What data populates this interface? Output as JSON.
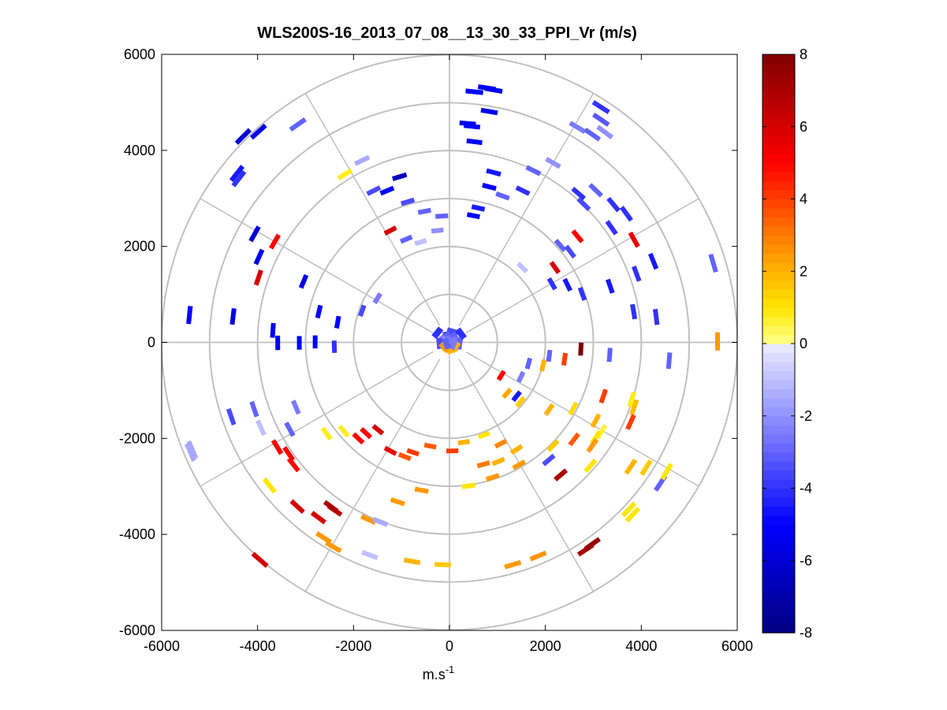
{
  "chart_data": {
    "type": "scatter",
    "subtype": "polar-ppi",
    "title": "WLS200S-16_2013_07_08__13_30_33_PPI_Vr (m/s)",
    "xlabel": "m.s",
    "xlabel_superscript": "-1",
    "ylabel": "",
    "xlim": [
      -6000,
      6000
    ],
    "ylim": [
      -6000,
      6000
    ],
    "xticks": [
      -6000,
      -4000,
      -2000,
      0,
      2000,
      4000,
      6000
    ],
    "yticks": [
      -6000,
      -4000,
      -2000,
      0,
      2000,
      4000,
      6000
    ],
    "xtick_labels": [
      "-6000",
      "-4000",
      "-2000",
      "0",
      "2000",
      "4000",
      "6000"
    ],
    "ytick_labels": [
      "-6000",
      "-4000",
      "-2000",
      "0",
      "2000",
      "4000",
      "6000"
    ],
    "polar_grid": {
      "ring_radii": [
        1000,
        2000,
        3000,
        4000,
        5000,
        6000
      ],
      "spoke_angles_deg": [
        0,
        30,
        60,
        90,
        120,
        150,
        180,
        210,
        240,
        270,
        300,
        330
      ]
    },
    "colorbar": {
      "min": -8,
      "max": 8,
      "ticks": [
        8,
        6,
        4,
        2,
        0,
        -2,
        -4,
        -6,
        -8
      ],
      "tick_labels": [
        "8",
        "6",
        "4",
        "2",
        "0",
        "-2",
        "-4",
        "-6",
        "-8"
      ],
      "colormap": "blue-white-yellow-red",
      "stops": [
        {
          "v": -8,
          "c": "#00007f"
        },
        {
          "v": -5,
          "c": "#0000ff"
        },
        {
          "v": -2.5,
          "c": "#7a7aff"
        },
        {
          "v": -0.1,
          "c": "#e8e8ff"
        },
        {
          "v": 0.1,
          "c": "#ffff80"
        },
        {
          "v": 1,
          "c": "#ffe600"
        },
        {
          "v": 2.5,
          "c": "#ff9900"
        },
        {
          "v": 5,
          "c": "#ff0000"
        },
        {
          "v": 8,
          "c": "#7f0000"
        }
      ]
    },
    "points": [
      [
        920,
        5260,
        -5.5
      ],
      [
        780,
        5300,
        -5
      ],
      [
        520,
        5220,
        -5
      ],
      [
        380,
        4560,
        -5.5
      ],
      [
        470,
        4500,
        -5
      ],
      [
        520,
        4180,
        -5
      ],
      [
        830,
        4810,
        -5.5
      ],
      [
        920,
        3540,
        -4.5
      ],
      [
        830,
        3240,
        -5
      ],
      [
        1110,
        3050,
        -3
      ],
      [
        600,
        2800,
        -4.5
      ],
      [
        500,
        2640,
        -5
      ],
      [
        1530,
        3160,
        -4
      ],
      [
        1750,
        3580,
        -3
      ],
      [
        2160,
        3740,
        -2
      ],
      [
        2670,
        4480,
        -2.5
      ],
      [
        2980,
        4330,
        -3
      ],
      [
        3160,
        4900,
        -4
      ],
      [
        3160,
        4640,
        -3.2
      ],
      [
        3240,
        4380,
        -2
      ],
      [
        2690,
        3100,
        -4
      ],
      [
        3050,
        3170,
        -3
      ],
      [
        2800,
        2880,
        -3.5
      ],
      [
        3420,
        2870,
        -4
      ],
      [
        3690,
        2680,
        -4
      ],
      [
        3850,
        2140,
        5.5
      ],
      [
        3380,
        2390,
        -4
      ],
      [
        2670,
        2210,
        5
      ],
      [
        2310,
        2020,
        -3
      ],
      [
        2520,
        1890,
        -3.5
      ],
      [
        1520,
        1560,
        -1
      ],
      [
        2200,
        1560,
        6
      ],
      [
        2140,
        1220,
        -4
      ],
      [
        2460,
        1200,
        -4.5
      ],
      [
        2770,
        1010,
        -4
      ],
      [
        3350,
        1170,
        -4.5
      ],
      [
        3900,
        1430,
        -4
      ],
      [
        4250,
        1690,
        -4.5
      ],
      [
        3840,
        640,
        -4
      ],
      [
        4310,
        530,
        -4
      ],
      [
        5500,
        1650,
        -3
      ],
      [
        5590,
        20,
        2.5
      ],
      [
        4580,
        -380,
        -3
      ],
      [
        3340,
        -260,
        -3
      ],
      [
        2740,
        -140,
        8
      ],
      [
        2400,
        -350,
        4
      ],
      [
        2080,
        -280,
        -3
      ],
      [
        1950,
        -480,
        2
      ],
      [
        1490,
        -720,
        -2.5
      ],
      [
        1650,
        -440,
        -3
      ],
      [
        1080,
        -690,
        5
      ],
      [
        1200,
        -1060,
        2.2
      ],
      [
        1400,
        -1120,
        -4.5
      ],
      [
        1480,
        -1240,
        1.5
      ],
      [
        2080,
        -1400,
        2
      ],
      [
        2580,
        -1380,
        1.2
      ],
      [
        3210,
        -1120,
        4
      ],
      [
        3800,
        -1190,
        0.8
      ],
      [
        3850,
        -1350,
        1.8
      ],
      [
        3780,
        -1660,
        4
      ],
      [
        3050,
        -1630,
        2
      ],
      [
        3170,
        -1860,
        0.6
      ],
      [
        3050,
        -1980,
        1
      ],
      [
        2980,
        -2150,
        2.5
      ],
      [
        2600,
        -2020,
        3.5
      ],
      [
        2160,
        -2150,
        1.5
      ],
      [
        2070,
        -2450,
        -3.5
      ],
      [
        1400,
        -2230,
        2
      ],
      [
        1070,
        -2110,
        2.8
      ],
      [
        720,
        -1930,
        1
      ],
      [
        300,
        -2080,
        2
      ],
      [
        60,
        -2260,
        4
      ],
      [
        -400,
        -2160,
        3.5
      ],
      [
        -760,
        -2290,
        4
      ],
      [
        -930,
        -2380,
        3.6
      ],
      [
        -1230,
        -2260,
        5.5
      ],
      [
        -1490,
        -1820,
        6
      ],
      [
        -1740,
        -1890,
        5
      ],
      [
        -1900,
        -2000,
        5
      ],
      [
        -2200,
        -1850,
        0.8
      ],
      [
        -2560,
        -1900,
        0.8
      ],
      [
        -3200,
        -1350,
        -2.5
      ],
      [
        -3330,
        -1810,
        -3
      ],
      [
        -3930,
        -1780,
        -1
      ],
      [
        -4070,
        -1390,
        -3
      ],
      [
        -4550,
        -1550,
        -3.5
      ],
      [
        -3590,
        -2180,
        5
      ],
      [
        -3350,
        -2320,
        5
      ],
      [
        -3250,
        -2550,
        5
      ],
      [
        -3750,
        -2980,
        1
      ],
      [
        -3170,
        -3420,
        6
      ],
      [
        -2390,
        -3500,
        6.5
      ],
      [
        -2470,
        -3420,
        7
      ],
      [
        -2730,
        -3650,
        6
      ],
      [
        -2420,
        -4260,
        2.5
      ],
      [
        -1690,
        -3690,
        2.5
      ],
      [
        -1440,
        -3740,
        -1.5
      ],
      [
        -1080,
        -3320,
        2.5
      ],
      [
        -580,
        -3080,
        2.5
      ],
      [
        400,
        -2990,
        1
      ],
      [
        900,
        -2810,
        2.5
      ],
      [
        1450,
        -2550,
        2.5
      ],
      [
        1020,
        -2480,
        2
      ],
      [
        710,
        -2540,
        3
      ],
      [
        2320,
        -2760,
        7
      ],
      [
        2940,
        -2570,
        1
      ],
      [
        3780,
        -2590,
        2
      ],
      [
        4100,
        -2610,
        1.5
      ],
      [
        4400,
        -2930,
        -3
      ],
      [
        4530,
        -2690,
        1
      ],
      [
        3740,
        -3480,
        1
      ],
      [
        3820,
        -3590,
        1
      ],
      [
        2840,
        -4320,
        7
      ],
      [
        2980,
        -4200,
        7.5
      ],
      [
        1850,
        -4450,
        2.6
      ],
      [
        1320,
        -4630,
        2.5
      ],
      [
        -140,
        -4630,
        1.6
      ],
      [
        -780,
        -4560,
        2
      ],
      [
        -1660,
        -4430,
        -1
      ],
      [
        -2620,
        -4070,
        2.5
      ],
      [
        -3950,
        -4530,
        6
      ],
      [
        -5360,
        -2240,
        -1.5
      ],
      [
        -5400,
        -2290,
        -1.5
      ],
      [
        -5420,
        570,
        -5
      ],
      [
        -4510,
        540,
        -5.5
      ],
      [
        -3680,
        250,
        -5
      ],
      [
        -3130,
        -10,
        -5
      ],
      [
        -3580,
        -10,
        -5.5
      ],
      [
        -2800,
        10,
        -5
      ],
      [
        -4060,
        2260,
        -6
      ],
      [
        -3640,
        2100,
        5
      ],
      [
        -3970,
        1780,
        -5.5
      ],
      [
        -3980,
        1350,
        6
      ],
      [
        -3040,
        1270,
        -5.5
      ],
      [
        -2720,
        640,
        -5
      ],
      [
        -2330,
        420,
        -5
      ],
      [
        -2400,
        -90,
        -4
      ],
      [
        -1820,
        660,
        -3.5
      ],
      [
        -1500,
        920,
        -2.5
      ],
      [
        -1230,
        2330,
        6
      ],
      [
        -900,
        2150,
        -3
      ],
      [
        -600,
        2090,
        -1
      ],
      [
        -250,
        2330,
        -2
      ],
      [
        -160,
        2630,
        -3
      ],
      [
        -520,
        2730,
        -3
      ],
      [
        -870,
        2930,
        -3.5
      ],
      [
        -1300,
        3160,
        -5
      ],
      [
        -1580,
        3160,
        -3.5
      ],
      [
        -1040,
        3450,
        -6.5
      ],
      [
        -1820,
        3790,
        -1.5
      ],
      [
        -2180,
        3500,
        0.8
      ],
      [
        -3160,
        4540,
        -3
      ],
      [
        -3980,
        4390,
        -5.5
      ],
      [
        -4430,
        3520,
        -4.5
      ],
      [
        -4300,
        4290,
        -6
      ],
      [
        -4390,
        3410,
        -4
      ]
    ],
    "inner_points": [
      [
        -20,
        160,
        -4
      ],
      [
        60,
        220,
        -3.5
      ],
      [
        -80,
        120,
        -3
      ],
      [
        120,
        90,
        -3
      ],
      [
        -120,
        60,
        -3
      ],
      [
        20,
        40,
        -2.5
      ],
      [
        -150,
        10,
        -2
      ],
      [
        150,
        0,
        -2.5
      ],
      [
        -200,
        -20,
        -3.5
      ],
      [
        200,
        -30,
        -3
      ],
      [
        -30,
        -140,
        1.5
      ],
      [
        60,
        -150,
        2
      ],
      [
        -100,
        -100,
        2.5
      ],
      [
        120,
        -90,
        2
      ],
      [
        -250,
        200,
        -4
      ],
      [
        240,
        180,
        -4
      ],
      [
        -20,
        -40,
        -2
      ],
      [
        80,
        -30,
        -2.5
      ],
      [
        -60,
        -20,
        -3
      ]
    ]
  }
}
